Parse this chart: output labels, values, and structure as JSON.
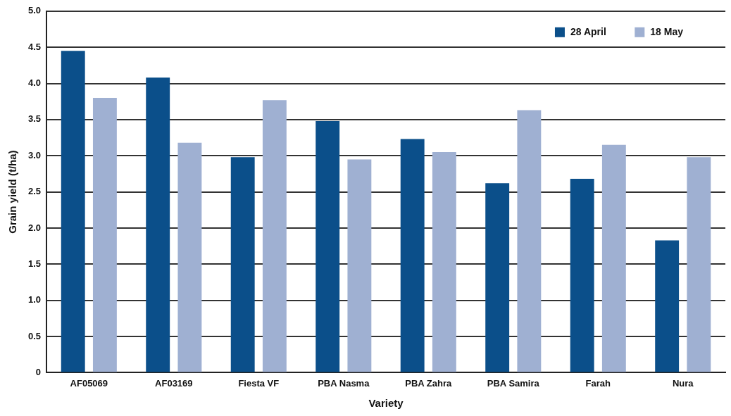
{
  "chart_data": {
    "type": "bar",
    "xlabel": "Variety",
    "ylabel": "Grain yield (t/ha)",
    "categories": [
      "AF05069",
      "AF03169",
      "Fiesta VF",
      "PBA Nasma",
      "PBA Zahra",
      "PBA Samira",
      "Farah",
      "Nura"
    ],
    "series": [
      {
        "name": "28 April",
        "color": "#0b4f8a",
        "values": [
          4.45,
          4.08,
          2.98,
          3.48,
          3.23,
          2.62,
          2.68,
          1.83
        ]
      },
      {
        "name": "18 May",
        "color": "#9fb0d2",
        "values": [
          3.8,
          3.18,
          3.77,
          2.95,
          3.05,
          3.63,
          3.15,
          2.98
        ]
      }
    ],
    "ylim": [
      0,
      5
    ],
    "yticks": [
      {
        "value": 0,
        "label": "0"
      },
      {
        "value": 0.5,
        "label": "0.5"
      },
      {
        "value": 1,
        "label": "1.0"
      },
      {
        "value": 1.5,
        "label": "1.5"
      },
      {
        "value": 2,
        "label": "2.0"
      },
      {
        "value": 2.5,
        "label": "2.5"
      },
      {
        "value": 3,
        "label": "3.0"
      },
      {
        "value": 3.5,
        "label": "3.5"
      },
      {
        "value": 4,
        "label": "4.0"
      },
      {
        "value": 4.5,
        "label": "4.5"
      },
      {
        "value": 5,
        "label": "5.0"
      }
    ],
    "grid": "y",
    "legend": "top right"
  }
}
